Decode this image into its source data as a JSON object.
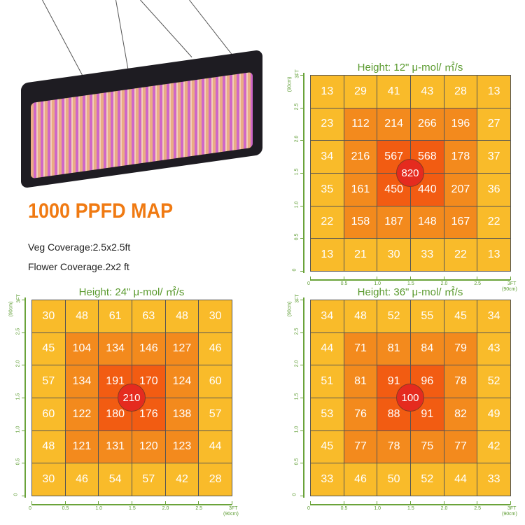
{
  "heading": "1000 PPFD MAP",
  "veg_coverage": "Veg Coverage:2.5x2.5ft",
  "flower_coverage": "Flower Coverage.2x2 ft",
  "colors": {
    "low": "#f9bb2a",
    "mid": "#f38a1d",
    "high": "#f25c12",
    "peak": "#e52b1f",
    "title": "#5a9a2e"
  },
  "chart_data": [
    {
      "type": "heatmap",
      "title": "Height: 12\" μ-mol/ ㎡/s",
      "center_value": "820",
      "x_ticks": [
        "0",
        "0.5",
        "1.0",
        "1.5",
        "2.0",
        "2.5",
        "3FT"
      ],
      "y_ticks": [
        "0",
        "0.5",
        "1.0",
        "1.5",
        "2.0",
        "2.5",
        "3FT"
      ],
      "unit_label": "(90cm)",
      "values": [
        [
          13,
          29,
          41,
          43,
          28,
          13
        ],
        [
          23,
          112,
          214,
          266,
          196,
          27
        ],
        [
          34,
          216,
          567,
          568,
          178,
          37
        ],
        [
          35,
          161,
          450,
          440,
          207,
          36
        ],
        [
          22,
          158,
          187,
          148,
          167,
          22
        ],
        [
          13,
          21,
          30,
          33,
          22,
          13
        ]
      ]
    },
    {
      "type": "heatmap",
      "title": "Height: 24\" μ-mol/ ㎡/s",
      "center_value": "210",
      "x_ticks": [
        "0",
        "0.5",
        "1.0",
        "1.5",
        "2.0",
        "2.5",
        "3FT"
      ],
      "y_ticks": [
        "0",
        "0.5",
        "1.0",
        "1.5",
        "2.0",
        "2.5",
        "3FT"
      ],
      "unit_label": "(90cm)",
      "values": [
        [
          30,
          48,
          61,
          63,
          48,
          30
        ],
        [
          45,
          104,
          134,
          146,
          127,
          46
        ],
        [
          57,
          134,
          191,
          170,
          124,
          60
        ],
        [
          60,
          122,
          180,
          176,
          138,
          57
        ],
        [
          48,
          121,
          131,
          120,
          123,
          44
        ],
        [
          30,
          46,
          54,
          57,
          42,
          28
        ]
      ]
    },
    {
      "type": "heatmap",
      "title": "Height: 36\" μ-mol/ ㎡/s",
      "center_value": "100",
      "x_ticks": [
        "0",
        "0.5",
        "1.0",
        "1.5",
        "2.0",
        "2.5",
        "3FT"
      ],
      "y_ticks": [
        "0",
        "0.5",
        "1.0",
        "1.5",
        "2.0",
        "2.5",
        "3FT"
      ],
      "unit_label": "(90cm)",
      "values": [
        [
          34,
          48,
          52,
          55,
          45,
          34
        ],
        [
          44,
          71,
          81,
          84,
          79,
          43
        ],
        [
          51,
          81,
          91,
          96,
          78,
          52
        ],
        [
          53,
          76,
          88,
          91,
          82,
          49
        ],
        [
          45,
          77,
          78,
          75,
          77,
          42
        ],
        [
          33,
          46,
          50,
          52,
          44,
          33
        ]
      ]
    }
  ]
}
